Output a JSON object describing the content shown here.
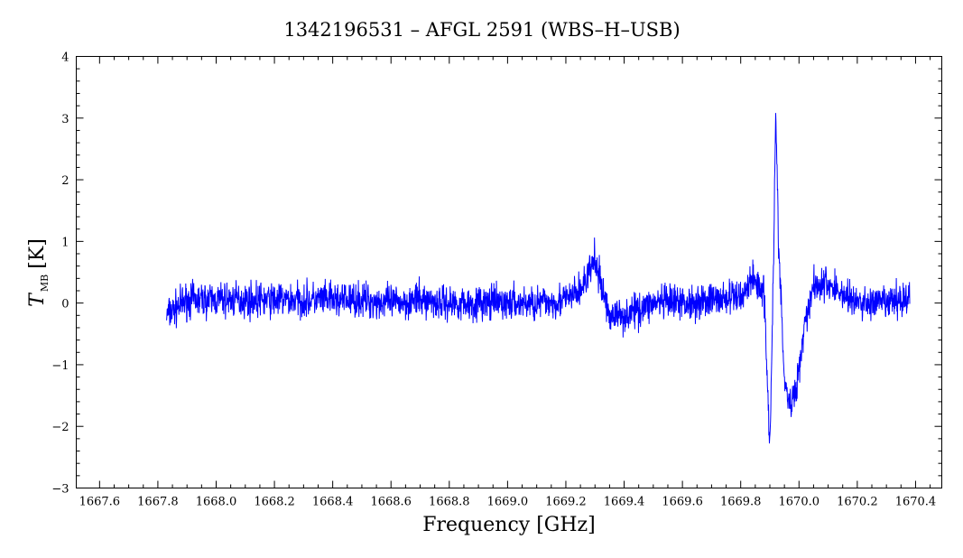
{
  "chart_data": {
    "type": "line",
    "title": "1342196531 – AFGL 2591 (WBS–H–USB)",
    "xlabel": "Frequency [GHz]",
    "ylabel_main": "T",
    "ylabel_sub": "MB",
    "ylabel_unit": "[K]",
    "xlim": [
      1667.52,
      1670.49
    ],
    "ylim": [
      -3,
      4
    ],
    "x_ticks": [
      1667.6,
      1667.8,
      1668.0,
      1668.2,
      1668.4,
      1668.6,
      1668.8,
      1669.0,
      1669.2,
      1669.4,
      1669.6,
      1669.8,
      1670.0,
      1670.2,
      1670.4
    ],
    "x_tick_labels": [
      "1667.6",
      "1667.8",
      "1668.0",
      "1668.2",
      "1668.4",
      "1668.6",
      "1668.8",
      "1669.0",
      "1669.2",
      "1669.4",
      "1669.6",
      "1669.8",
      "1670.0",
      "1670.2",
      "1670.4"
    ],
    "y_ticks": [
      -3,
      -2,
      -1,
      0,
      1,
      2,
      3,
      4
    ],
    "y_tick_labels": [
      "−3",
      "−2",
      "−1",
      "0",
      "1",
      "2",
      "3",
      "4"
    ],
    "grid": false,
    "line_color": "#0000ff",
    "series": [
      {
        "x": [
          1667.83,
          1667.9,
          1668.0,
          1668.1,
          1668.2,
          1668.3,
          1668.4,
          1668.5,
          1668.6,
          1668.7,
          1668.8,
          1668.9,
          1669.0,
          1669.1,
          1669.2,
          1669.25,
          1669.28,
          1669.3,
          1669.32,
          1669.35,
          1669.4,
          1669.5,
          1669.6,
          1669.7,
          1669.8,
          1669.84,
          1669.88,
          1669.9,
          1669.91,
          1669.92,
          1669.93,
          1669.95,
          1669.97,
          1669.99,
          1670.02,
          1670.05,
          1670.1,
          1670.2,
          1670.3,
          1670.38
        ],
        "y": [
          -0.2,
          0.05,
          0.05,
          0.05,
          0.05,
          0.05,
          0.05,
          0.05,
          0.0,
          0.05,
          0.0,
          0.0,
          0.0,
          0.0,
          0.05,
          0.2,
          0.5,
          0.7,
          0.3,
          -0.2,
          -0.2,
          0.0,
          0.0,
          0.05,
          0.1,
          0.4,
          0.2,
          -2.3,
          0.0,
          3.0,
          1.0,
          -1.3,
          -1.7,
          -1.4,
          -0.3,
          0.3,
          0.3,
          0.0,
          0.0,
          0.1
        ]
      }
    ]
  }
}
